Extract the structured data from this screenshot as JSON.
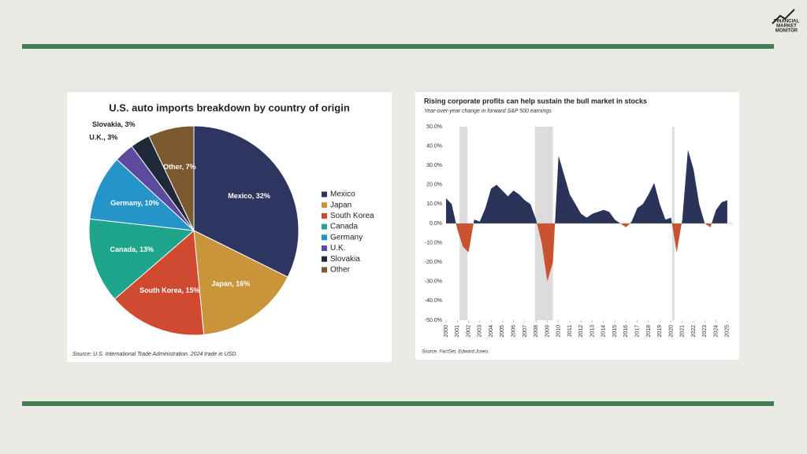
{
  "logo": [
    "FINANCIAL",
    "MARKET",
    "MONITOR"
  ],
  "chart_data": [
    {
      "type": "pie",
      "title": "U.S. auto imports breakdown by country of origin",
      "categories": [
        "Mexico",
        "Japan",
        "South Korea",
        "Canada",
        "Germany",
        "U.K.",
        "Slovakia",
        "Other"
      ],
      "values": [
        32,
        16,
        15,
        13,
        10,
        3,
        3,
        7
      ],
      "value_labels": [
        "Mexico, 32%",
        "Japan, 16%",
        "South Korea, 15%",
        "Canada, 13%",
        "Germany, 10%",
        "U.K., 3%",
        "Slovakia, 3%",
        "Other, 7%"
      ],
      "colors": [
        "#2e3560",
        "#c9943a",
        "#cf4a30",
        "#1fa58b",
        "#2595c9",
        "#5b4a9e",
        "#1e2a3a",
        "#7a5a2e"
      ],
      "legend": "right",
      "source": "Source: U.S. International Trade Administration. 2024 trade in USD."
    },
    {
      "type": "area",
      "title": "Rising corporate profits can help sustain the bull market in stocks",
      "subtitle": "Year-over-year  change in forward S&P 500 earnings",
      "source": "Source: FactSet, Edward Jones.",
      "x": [
        2000,
        2000.5,
        2001,
        2001.5,
        2002,
        2002.5,
        2003,
        2003.5,
        2004,
        2004.5,
        2005,
        2005.5,
        2006,
        2006.5,
        2007,
        2007.5,
        2008,
        2008.5,
        2009,
        2009.5,
        2010,
        2010.5,
        2011,
        2011.5,
        2012,
        2012.5,
        2013,
        2013.5,
        2014,
        2014.5,
        2015,
        2015.5,
        2016,
        2016.5,
        2017,
        2017.5,
        2018,
        2018.5,
        2019,
        2019.5,
        2020,
        2020.5,
        2021,
        2021.5,
        2022,
        2022.5,
        2023,
        2023.5,
        2024,
        2024.5,
        2025
      ],
      "values": [
        13,
        10,
        -3,
        -12,
        -15,
        2,
        1,
        8,
        18,
        20,
        17,
        14,
        17,
        15,
        12,
        10,
        2,
        -10,
        -30,
        -20,
        35,
        25,
        15,
        10,
        5,
        3,
        5,
        6,
        7,
        6,
        2,
        0,
        -2,
        1,
        8,
        10,
        15,
        21,
        10,
        2,
        3,
        -15,
        2,
        38,
        28,
        10,
        0,
        -2,
        7,
        11,
        12
      ],
      "positive_color": "#2b3358",
      "negative_color": "#c8532e",
      "shaded_ranges": [
        [
          2001.2,
          2001.9
        ],
        [
          2007.9,
          2009.5
        ],
        [
          2020.1,
          2020.3
        ]
      ],
      "xlim": [
        2000,
        2025.5
      ],
      "xticks": [
        2000,
        2001,
        2002,
        2003,
        2004,
        2005,
        2006,
        2007,
        2008,
        2009,
        2010,
        2011,
        2012,
        2013,
        2014,
        2015,
        2016,
        2017,
        2018,
        2019,
        2020,
        2021,
        2022,
        2023,
        2024,
        2025
      ],
      "ylim": [
        -50,
        50
      ],
      "yticks": [
        {
          "value": 50,
          "label": "50.0%"
        },
        {
          "value": 40,
          "label": "40.0%"
        },
        {
          "value": 30,
          "label": "30.0%"
        },
        {
          "value": 20,
          "label": "20.0%"
        },
        {
          "value": 10,
          "label": "10.0%"
        },
        {
          "value": 0,
          "label": "0.0%"
        },
        {
          "value": -10,
          "label": "-10.0%"
        },
        {
          "value": -20,
          "label": "-20.0%"
        },
        {
          "value": -30,
          "label": "-30.0%"
        },
        {
          "value": -40,
          "label": "-40.0%"
        },
        {
          "value": -50,
          "label": "-50.0%"
        }
      ]
    }
  ]
}
